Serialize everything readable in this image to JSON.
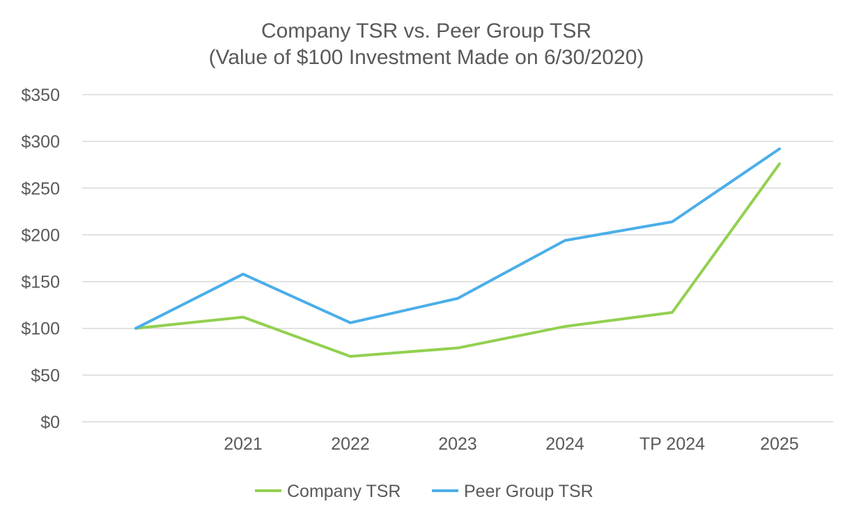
{
  "chart_data": {
    "type": "line",
    "title": "Company TSR vs. Peer Group TSR",
    "subtitle": "(Value of $100 Investment Made on 6/30/2020)",
    "categories": [
      "",
      "2021",
      "2022",
      "2023",
      "2024",
      "TP 2024",
      "2025"
    ],
    "series": [
      {
        "name": "Company TSR",
        "color": "#92d050",
        "values": [
          100,
          112,
          70,
          79,
          102,
          117,
          276
        ]
      },
      {
        "name": "Peer Group TSR",
        "color": "#4baee8",
        "values": [
          100,
          158,
          106,
          132,
          194,
          214,
          292
        ]
      }
    ],
    "ylim": [
      0,
      350
    ],
    "yticks": [
      0,
      50,
      100,
      150,
      200,
      250,
      300,
      350
    ],
    "ytick_labels": [
      "$0",
      "$50",
      "$100",
      "$150",
      "$200",
      "$250",
      "$300",
      "$350"
    ],
    "xlabel": "",
    "ylabel": "",
    "grid": true,
    "legend_position": "bottom"
  }
}
